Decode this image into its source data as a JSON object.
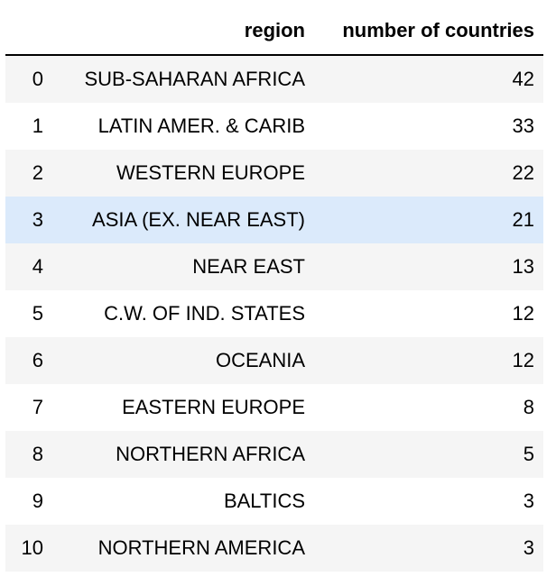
{
  "table": {
    "columns": [
      "",
      "region",
      "number of countries"
    ],
    "rows": [
      {
        "index": "0",
        "region": "SUB-SAHARAN AFRICA",
        "count": "42"
      },
      {
        "index": "1",
        "region": "LATIN AMER. & CARIB",
        "count": "33"
      },
      {
        "index": "2",
        "region": "WESTERN EUROPE",
        "count": "22"
      },
      {
        "index": "3",
        "region": "ASIA (EX. NEAR EAST)",
        "count": "21"
      },
      {
        "index": "4",
        "region": "NEAR EAST",
        "count": "13"
      },
      {
        "index": "5",
        "region": "C.W. OF IND. STATES",
        "count": "12"
      },
      {
        "index": "6",
        "region": "OCEANIA",
        "count": "12"
      },
      {
        "index": "7",
        "region": "EASTERN EUROPE",
        "count": "8"
      },
      {
        "index": "8",
        "region": "NORTHERN AFRICA",
        "count": "5"
      },
      {
        "index": "9",
        "region": "BALTICS",
        "count": "3"
      },
      {
        "index": "10",
        "region": "NORTHERN AMERICA",
        "count": "3"
      }
    ],
    "highlighted_row": 3
  },
  "colors": {
    "stripe": "#f5f5f5",
    "hover": "#dbeafb",
    "header_rule": "#000000"
  }
}
